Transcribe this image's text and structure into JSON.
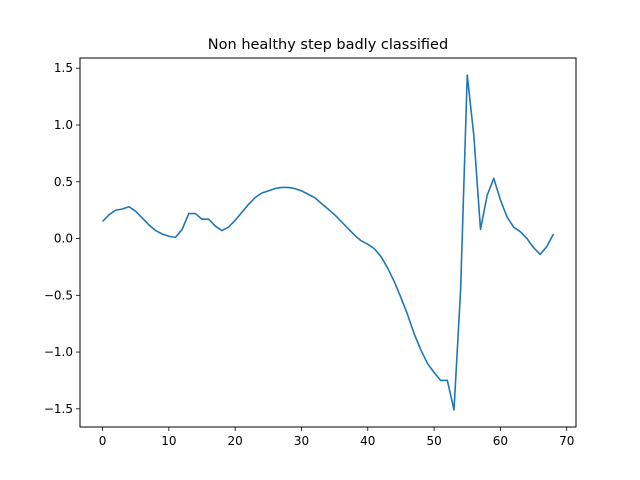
{
  "chart_data": {
    "type": "line",
    "title": "Non healthy step badly classified",
    "xlabel": "",
    "ylabel": "",
    "xlim": [
      -3.4,
      71.4
    ],
    "ylim": [
      -1.66,
      1.59
    ],
    "xticks": [
      0,
      10,
      20,
      30,
      40,
      50,
      60,
      70
    ],
    "yticks": [
      -1.5,
      -1.0,
      -0.5,
      0.0,
      0.5,
      1.0,
      1.5
    ],
    "ytick_labels": [
      "−1.5",
      "−1.0",
      "−0.5",
      "0.0",
      "0.5",
      "1.0",
      "1.5"
    ],
    "grid": false,
    "line_color": "#1f77b4",
    "series": [
      {
        "x": [
          0,
          1,
          2,
          3,
          4,
          5,
          6,
          7,
          8,
          9,
          10,
          11,
          12,
          13,
          14,
          15,
          16,
          17,
          18,
          19,
          20,
          21,
          22,
          23,
          24,
          25,
          26,
          27,
          28,
          29,
          30,
          31,
          32,
          33,
          34,
          35,
          36,
          37,
          38,
          39,
          40,
          41,
          42,
          43,
          44,
          45,
          46,
          47,
          48,
          49,
          50,
          51,
          52,
          53,
          54,
          55,
          56,
          57,
          58,
          59,
          60,
          61,
          62,
          63,
          64,
          65,
          66,
          67,
          68
        ],
        "y": [
          0.15,
          0.21,
          0.25,
          0.26,
          0.28,
          0.24,
          0.18,
          0.12,
          0.07,
          0.04,
          0.02,
          0.01,
          0.08,
          0.22,
          0.22,
          0.17,
          0.17,
          0.11,
          0.07,
          0.1,
          0.16,
          0.23,
          0.3,
          0.36,
          0.4,
          0.42,
          0.44,
          0.45,
          0.45,
          0.44,
          0.42,
          0.39,
          0.36,
          0.31,
          0.26,
          0.21,
          0.15,
          0.09,
          0.03,
          -0.02,
          -0.05,
          -0.09,
          -0.16,
          -0.26,
          -0.38,
          -0.52,
          -0.67,
          -0.84,
          -0.98,
          -1.1,
          -1.18,
          -1.25,
          -1.25,
          -1.51,
          -0.45,
          1.44,
          0.9,
          0.08,
          0.38,
          0.53,
          0.34,
          0.19,
          0.1,
          0.06,
          0.0,
          -0.08,
          -0.14,
          -0.07,
          0.04
        ]
      }
    ]
  }
}
